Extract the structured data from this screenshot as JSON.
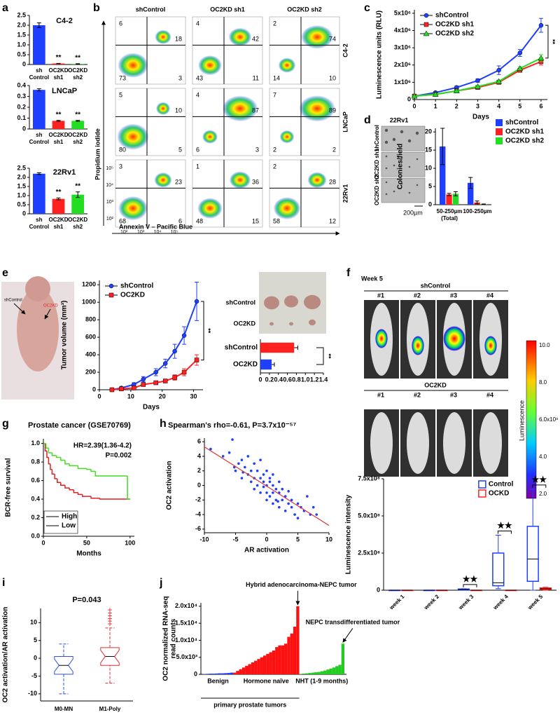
{
  "panel_labels": [
    "a",
    "b",
    "c",
    "d",
    "e",
    "f",
    "g",
    "h",
    "i",
    "j"
  ],
  "flow": {
    "columns": [
      "shControl",
      "OC2KD sh1",
      "OC2KD sh2"
    ],
    "rows": [
      "C4-2",
      "LNCaP",
      "22Rv1"
    ],
    "quadrants": [
      [
        [
          6,
          18,
          73,
          3
        ],
        [
          4,
          42,
          43,
          11
        ],
        [
          2,
          74,
          14,
          10
        ]
      ],
      [
        [
          5,
          10,
          80,
          5
        ],
        [
          4,
          87,
          6,
          3
        ],
        [
          7,
          89,
          2,
          2
        ]
      ],
      [
        [
          3,
          23,
          68,
          6
        ],
        [
          1,
          36,
          48,
          15
        ],
        [
          2,
          28,
          58,
          12
        ]
      ]
    ],
    "ylabel": "Propidium iodide",
    "xlabel": "Annexin V – Pacific Blue",
    "yticks": [
      "10⁵",
      "10⁴",
      "10³",
      "10²"
    ],
    "xticks": [
      "10²",
      "10³",
      "10⁴",
      "10⁵"
    ]
  },
  "colony_images": {
    "title": "22Rv1",
    "rows": [
      "shControl",
      "OC2KD sh1",
      "OC2KD sh2"
    ],
    "scale": "200µm"
  },
  "mouse_photo": {
    "labels": [
      "shControl",
      "OC2KD"
    ]
  },
  "tumor_photo": {
    "labels": [
      "shControl",
      "OC2KD"
    ]
  },
  "imaging": {
    "title": "Week 5",
    "groups": [
      "shControl",
      "OC2KD"
    ],
    "mice": [
      "#1",
      "#2",
      "#3",
      "#4"
    ],
    "colorbar": {
      "label": "Luminescence",
      "ticks": [
        "10.0",
        "8.0",
        "6.0x10⁸",
        "4.0",
        "2.0"
      ]
    }
  },
  "chart_data": [
    {
      "type": "bar",
      "title": "C4-2",
      "ylabel": "590nm",
      "categories": [
        [
          "sh",
          "Control"
        ],
        [
          "OC2KD",
          "sh1"
        ],
        [
          "OC2KD",
          "sh2"
        ]
      ],
      "values": [
        2.0,
        0.05,
        0.03
      ],
      "errors": [
        0.12,
        0.01,
        0.01
      ],
      "colors": [
        "#1f3fff",
        "#ff2020",
        "#22dd22"
      ],
      "value_annotations": [
        null,
        "**",
        "**"
      ],
      "ylim": [
        0,
        2.5
      ],
      "yticks": [
        0,
        0.5,
        {
          "value": 1,
          "label": "1.0"
        },
        1.5,
        {
          "value": 2,
          "label": "2.0"
        },
        2.5
      ]
    },
    {
      "type": "bar",
      "title": "LNCaP",
      "ylabel": "590nm",
      "categories": [
        [
          "sh",
          "Control"
        ],
        [
          "OC2KD",
          "sh1"
        ],
        [
          "OC2KD",
          "sh2"
        ]
      ],
      "values": [
        0.36,
        0.075,
        0.075
      ],
      "errors": [
        0.01,
        0.004,
        0.004
      ],
      "colors": [
        "#1f3fff",
        "#ff2020",
        "#22dd22"
      ],
      "value_annotations": [
        null,
        "**",
        "**"
      ],
      "ylim": [
        0,
        0.4
      ],
      "yticks": [
        0,
        0.1,
        0.2,
        0.3,
        0.4
      ]
    },
    {
      "type": "bar",
      "title": "22Rv1",
      "ylabel": "590nm",
      "categories": [
        [
          "sh",
          "Control"
        ],
        [
          "OC2KD",
          "sh1"
        ],
        [
          "OC2KD",
          "sh2"
        ]
      ],
      "values": [
        2.2,
        0.82,
        1.05
      ],
      "errors": [
        0.05,
        0.05,
        0.15
      ],
      "colors": [
        "#1f3fff",
        "#ff2020",
        "#22dd22"
      ],
      "value_annotations": [
        null,
        "**",
        "**"
      ],
      "ylim": [
        0,
        2.5
      ],
      "yticks": [
        0,
        0.5,
        {
          "value": 1,
          "label": "1.0"
        },
        1.5,
        {
          "value": 2,
          "label": "2.0"
        },
        2.5
      ]
    },
    {
      "type": "line",
      "xlabel": "Days",
      "ylabel": "Luminescence units (RLU)",
      "x": [
        0,
        1,
        2,
        3,
        4,
        5,
        6
      ],
      "series": [
        {
          "name": "shControl",
          "color": "#1f3fff",
          "marker": "circle",
          "values": [
            200000,
            400000,
            700000,
            1100000,
            1700000,
            2700000,
            4300000
          ],
          "errors": [
            50000,
            50000,
            80000,
            100000,
            250000,
            200000,
            400000
          ]
        },
        {
          "name": "OC2KD sh1",
          "color": "#ff2020",
          "marker": "square",
          "values": [
            200000,
            300000,
            500000,
            700000,
            1000000,
            1700000,
            2200000
          ],
          "errors": [
            30000,
            40000,
            50000,
            60000,
            80000,
            100000,
            200000
          ]
        },
        {
          "name": "OC2KD sh2",
          "color": "#22dd22",
          "marker": "triangle",
          "values": [
            200000,
            300000,
            500000,
            750000,
            1050000,
            1800000,
            2400000
          ],
          "errors": [
            30000,
            40000,
            50000,
            60000,
            80000,
            100000,
            200000
          ]
        }
      ],
      "xlim": [
        0,
        6.3
      ],
      "xticks": [
        0,
        1,
        2,
        3,
        4,
        5,
        6
      ],
      "ylim": [
        0,
        5200000
      ],
      "yticks": [
        0,
        {
          "value": 1000000,
          "label": "1x10⁶"
        },
        {
          "value": 2000000,
          "label": "2x10⁶"
        },
        {
          "value": 3000000,
          "label": "3x10⁶"
        },
        {
          "value": 4000000,
          "label": "4x10⁶"
        },
        {
          "value": 5000000,
          "label": "5x10⁶"
        }
      ],
      "legend": "upper left",
      "annotation": "**"
    },
    {
      "type": "bar",
      "ylabel": "Colonies/field",
      "categories": [
        [
          "50-250µm",
          "(Total)"
        ],
        [
          "100-250µm"
        ]
      ],
      "series": [
        {
          "name": "shControl",
          "color": "#1f3fff",
          "values": [
            16,
            6
          ],
          "errors": [
            5,
            1.5
          ]
        },
        {
          "name": "OC2KD sh1",
          "color": "#ff2020",
          "values": [
            2.8,
            0.6
          ],
          "errors": [
            0.3,
            0.4
          ]
        },
        {
          "name": "OC2KD sh2",
          "color": "#22dd22",
          "values": [
            3.0,
            0.1
          ],
          "errors": [
            0.6,
            0.1
          ]
        }
      ],
      "ylim": [
        0,
        21
      ],
      "yticks": [
        0,
        5,
        10,
        15,
        20
      ],
      "legend": "right"
    },
    {
      "type": "line",
      "xlabel": "Days",
      "ylabel": "Tumor volume (mm³)",
      "x": [
        4,
        7,
        11,
        14,
        18,
        21,
        24,
        27,
        31
      ],
      "series": [
        {
          "name": "shControl",
          "color": "#1f3fff",
          "marker": "circle",
          "values": [
            0,
            20,
            60,
            120,
            200,
            300,
            440,
            620,
            1010
          ],
          "errors": [
            5,
            10,
            20,
            30,
            40,
            50,
            80,
            100,
            220
          ]
        },
        {
          "name": "OC2KD",
          "color": "#ff2020",
          "marker": "square",
          "values": [
            0,
            10,
            20,
            60,
            80,
            100,
            140,
            200,
            340
          ],
          "errors": [
            5,
            5,
            10,
            15,
            20,
            20,
            30,
            40,
            60
          ]
        }
      ],
      "xlim": [
        0,
        33
      ],
      "xticks": [
        0,
        10,
        20,
        30
      ],
      "ylim": [
        0,
        1250
      ],
      "yticks": [
        0,
        200,
        400,
        600,
        800,
        1000,
        1200
      ],
      "legend": "upper left",
      "annotation": "**"
    },
    {
      "type": "bar",
      "orientation": "horizontal",
      "xlabel": "Tumor weight (g)",
      "categories": [
        "shControl",
        "OC2KD"
      ],
      "values": [
        0.75,
        0.25
      ],
      "errors": [
        0.08,
        0.06
      ],
      "colors": [
        "#ff2020",
        "#1f3fff"
      ],
      "xlim": [
        0,
        1.4
      ],
      "xticks": [
        0,
        0.2,
        0.4,
        0.6,
        0.8,
        {
          "value": 1,
          "label": "1.0"
        },
        1.2,
        1.4
      ],
      "annotation": "**"
    },
    {
      "type": "box",
      "ylabel": "Luminescence intensity",
      "categories": [
        "week 1",
        "week 2",
        "week 3",
        "week 4",
        "week 5"
      ],
      "series": [
        {
          "name": "Control",
          "color": "#1f3fff",
          "values": [
            {
              "min": 0,
              "q1": 0,
              "median": 0,
              "q3": 0,
              "max": 0
            },
            {
              "min": 0,
              "q1": 0,
              "median": 0,
              "q3": 0,
              "max": 0
            },
            {
              "min": 0,
              "q1": 2000000,
              "median": 4000000,
              "q3": 8000000,
              "max": 10000000
            },
            {
              "min": 10000000,
              "q1": 30000000,
              "median": 50000000,
              "q3": 250000000,
              "max": 370000000
            },
            {
              "min": 0,
              "q1": 60000000,
              "median": 210000000,
              "q3": 430000000,
              "max": 680000000
            }
          ]
        },
        {
          "name": "OCKD",
          "color": "#ff2020",
          "values": [
            {
              "min": 0,
              "q1": 0,
              "median": 0,
              "q3": 0,
              "max": 0
            },
            {
              "min": 0,
              "q1": 0,
              "median": 0,
              "q3": 0,
              "max": 0
            },
            {
              "min": 0,
              "q1": 0,
              "median": 0,
              "q3": 0,
              "max": 0
            },
            {
              "min": 0,
              "q1": 0,
              "median": 0,
              "q3": 0,
              "max": 0
            },
            {
              "min": 0,
              "q1": 5000000,
              "median": 10000000,
              "q3": 15000000,
              "max": 20000000
            }
          ]
        }
      ],
      "ylim": [
        0,
        750000000
      ],
      "yticks": [
        0,
        {
          "value": 250000000,
          "label": "2.5x10⁸"
        },
        {
          "value": 500000000,
          "label": "5.0x10⁸"
        },
        {
          "value": 750000000,
          "label": "7.5x10⁸"
        }
      ],
      "legend": "upper center",
      "value_annotations": [
        null,
        null,
        "★★",
        "★★",
        "★★"
      ]
    },
    {
      "type": "line",
      "drawstyle": "steps-post",
      "title": "Prostate cancer (GSE70769)",
      "annotations": [
        "HR=2.39(1.36-4.2)",
        "P=0.002"
      ],
      "xlabel": "Months",
      "ylabel": "BCR-free survival",
      "series": [
        {
          "name": "High",
          "color": "#e02020",
          "x": [
            0,
            2,
            4,
            6,
            8,
            10,
            13,
            16,
            20,
            25,
            30,
            35,
            40,
            45,
            55,
            60,
            65,
            100
          ],
          "values": [
            1,
            0.92,
            0.85,
            0.78,
            0.72,
            0.67,
            0.62,
            0.58,
            0.55,
            0.52,
            0.5,
            0.47,
            0.45,
            0.43,
            0.41,
            0.41,
            0.4,
            0.4
          ]
        },
        {
          "name": "Low",
          "color": "#44dd22",
          "x": [
            0,
            3,
            6,
            10,
            15,
            20,
            25,
            30,
            40,
            50,
            55,
            60,
            95,
            97,
            100
          ],
          "values": [
            1,
            0.95,
            0.9,
            0.87,
            0.85,
            0.82,
            0.78,
            0.76,
            0.73,
            0.72,
            0.7,
            0.65,
            0.65,
            0.4,
            0.4
          ]
        }
      ],
      "xlim": [
        0,
        105
      ],
      "xticks": [
        0,
        50,
        100
      ],
      "ylim": [
        0,
        1.05
      ],
      "yticks": [
        {
          "value": 0,
          "label": "0.0"
        },
        0.2,
        0.4,
        0.6,
        0.8,
        {
          "value": 1,
          "label": "1.0"
        }
      ],
      "legend": "lower left"
    },
    {
      "type": "scatter",
      "title": "Spearman's rho=-0.61, P=3.7x10⁻⁵⁷",
      "xlabel": "AR activation",
      "ylabel": "OC2 activation",
      "color": "#1f3fff",
      "x": [
        -9,
        -7,
        -6,
        -5.5,
        -5,
        -4.5,
        -4,
        -4,
        -3.5,
        -3,
        -3,
        -2.5,
        -2.5,
        -2,
        -2,
        -2,
        -1.5,
        -1.5,
        -1,
        -1,
        -1,
        -0.5,
        -0.5,
        -0.5,
        0,
        0,
        0,
        0,
        0.5,
        0.5,
        0.5,
        1,
        1,
        1,
        1,
        1.5,
        1.5,
        2,
        2,
        2,
        2.5,
        2.5,
        3,
        3,
        3.5,
        3.5,
        4,
        4,
        4.5,
        5,
        5,
        5.5,
        6,
        6.5,
        7,
        7.5,
        8,
        -5.2,
        -3.8,
        1.8
      ],
      "values": [
        5,
        4,
        4.5,
        6.3,
        2,
        3,
        3.5,
        1,
        2.5,
        1.5,
        4,
        0.5,
        2,
        1,
        3,
        -0.5,
        2,
        0,
        1,
        -1,
        3.5,
        0.5,
        -0.2,
        1.5,
        0,
        -1,
        2,
        -2,
        0.5,
        -1.5,
        1,
        0,
        -1,
        -2.5,
        1.5,
        -0.5,
        -2,
        -1,
        -3,
        0.5,
        -2,
        -0.5,
        -1.5,
        -3.5,
        -2.5,
        -0.8,
        -2,
        -3,
        -4,
        -2.5,
        -4.5,
        -3,
        -3.5,
        -1.5,
        -4,
        -3,
        -4,
        2.5,
        1.8,
        -2.2
      ],
      "fit_line": {
        "color": "#e03030",
        "x": [
          -10,
          10
        ],
        "y": [
          5.3,
          -5.5
        ]
      },
      "xlim": [
        -10,
        10
      ],
      "xticks": [
        -10,
        -5,
        0,
        5,
        10
      ],
      "ylim": [
        -6.5,
        6.5
      ],
      "yticks": [
        -6,
        -4,
        -2,
        0,
        2,
        4,
        6
      ]
    },
    {
      "type": "box",
      "title": "P=0.043",
      "ylabel": "OC2 activation/AR activation",
      "categories": [
        "M0-MN",
        "M1-Poly"
      ],
      "colors": [
        "#3050e0",
        "#e03030"
      ],
      "notch": true,
      "whisker_style": "dashed",
      "values": [
        {
          "min": -10,
          "q1": -4.5,
          "median": -2,
          "q3": 0.5,
          "max": 4
        },
        {
          "min": -7,
          "q1": -2,
          "median": 0.5,
          "q3": 3,
          "max": 8.5,
          "outliers": [
            9.5,
            10.3,
            11,
            11.8,
            12.6,
            13.4
          ]
        }
      ],
      "ylim": [
        -12,
        14
      ],
      "yticks": [
        -10,
        -5,
        0,
        5,
        10
      ]
    },
    {
      "type": "bar",
      "grouping": "consecutive",
      "ylabel": [
        "OC2 normalized RNA-seq",
        "read counts"
      ],
      "group_label": "primary prostate tumors",
      "annotations": [
        "Hybrid adenocarcinoma-NEPC tumor",
        "NEPC transdifferentiated tumor"
      ],
      "series": [
        {
          "name": "Benign",
          "color": "#1f3fff",
          "values": [
            100,
            150,
            200,
            200,
            250,
            300,
            300,
            350,
            400,
            500
          ]
        },
        {
          "name": "Hormone naïve",
          "color": "#ff1010",
          "values": [
            500,
            1000,
            1500,
            2000,
            2500,
            3000,
            3500,
            4000,
            4500,
            5000,
            5500,
            6000,
            6500,
            7000,
            8000,
            8500,
            8500,
            9000,
            11000,
            12000,
            14000,
            20000
          ]
        },
        {
          "name": "NHT (1-9 months)",
          "color": "#22cc22",
          "values": [
            100,
            200,
            300,
            400,
            500,
            600,
            700,
            900,
            1100,
            1400,
            1700,
            2000,
            2400,
            2800,
            9000
          ]
        }
      ],
      "ylim": [
        0,
        21000
      ],
      "yticks": [
        0,
        {
          "value": 5000,
          "label": "5.0x10³"
        },
        {
          "value": 10000,
          "label": "1.0x10⁴"
        },
        {
          "value": 15000,
          "label": "1.5x10⁴"
        },
        {
          "value": 20000,
          "label": "2.0x10⁴"
        }
      ]
    }
  ]
}
